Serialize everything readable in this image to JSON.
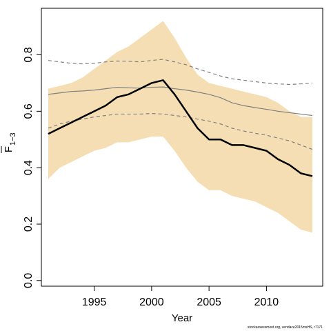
{
  "chart_data": {
    "type": "line",
    "xlabel": "Year",
    "ylabel_main": "F",
    "ylabel_sub": "1−3",
    "xlim": [
      1990.4,
      2014.9
    ],
    "ylim": [
      -0.02,
      0.965
    ],
    "x_ticks": [
      1995,
      2000,
      2005,
      2010
    ],
    "y_ticks": [
      0.0,
      0.2,
      0.4,
      0.6,
      0.8
    ],
    "y_tick_labels": [
      "0.0",
      "0.2",
      "0.4",
      "0.6",
      "0.8"
    ],
    "years": [
      1991,
      1992,
      1993,
      1994,
      1995,
      1996,
      1997,
      1998,
      1999,
      2000,
      2001,
      2002,
      2003,
      2004,
      2005,
      2006,
      2007,
      2008,
      2009,
      2010,
      2011,
      2012,
      2013,
      2014
    ],
    "band": {
      "color": "#f5deb3",
      "lower": [
        0.36,
        0.4,
        0.42,
        0.44,
        0.46,
        0.47,
        0.49,
        0.49,
        0.5,
        0.51,
        0.51,
        0.46,
        0.4,
        0.35,
        0.32,
        0.32,
        0.3,
        0.29,
        0.28,
        0.26,
        0.24,
        0.21,
        0.18,
        0.17
      ],
      "upper": [
        0.68,
        0.69,
        0.7,
        0.72,
        0.75,
        0.78,
        0.81,
        0.83,
        0.86,
        0.89,
        0.92,
        0.86,
        0.79,
        0.73,
        0.7,
        0.69,
        0.68,
        0.67,
        0.66,
        0.65,
        0.63,
        0.6,
        0.58,
        0.58
      ]
    },
    "series": [
      {
        "role": "main",
        "color": "#000000",
        "style": "solid",
        "values": [
          0.52,
          0.54,
          0.56,
          0.58,
          0.6,
          0.62,
          0.65,
          0.66,
          0.68,
          0.7,
          0.71,
          0.66,
          0.6,
          0.54,
          0.5,
          0.5,
          0.48,
          0.48,
          0.47,
          0.46,
          0.43,
          0.41,
          0.38,
          0.37
        ]
      },
      {
        "role": "reference-median",
        "color": "#808080",
        "style": "solid",
        "values": [
          0.66,
          0.665,
          0.67,
          0.672,
          0.675,
          0.68,
          0.685,
          0.683,
          0.682,
          0.685,
          0.686,
          0.68,
          0.675,
          0.668,
          0.66,
          0.648,
          0.63,
          0.62,
          0.613,
          0.607,
          0.6,
          0.595,
          0.59,
          0.585
        ]
      },
      {
        "role": "reference-upper",
        "color": "#808080",
        "style": "dashed",
        "values": [
          0.78,
          0.775,
          0.77,
          0.768,
          0.77,
          0.775,
          0.778,
          0.777,
          0.775,
          0.78,
          0.784,
          0.775,
          0.765,
          0.75,
          0.738,
          0.725,
          0.715,
          0.71,
          0.705,
          0.7,
          0.697,
          0.695,
          0.697,
          0.7
        ]
      },
      {
        "role": "reference-lower",
        "color": "#808080",
        "style": "dashed",
        "values": [
          0.54,
          0.555,
          0.565,
          0.572,
          0.58,
          0.585,
          0.59,
          0.59,
          0.59,
          0.592,
          0.59,
          0.585,
          0.58,
          0.572,
          0.565,
          0.555,
          0.54,
          0.53,
          0.522,
          0.515,
          0.505,
          0.495,
          0.48,
          0.465
        ]
      }
    ]
  },
  "footer": {
    "credit": "stockassessment.org, vendace2015msHS, r7171"
  }
}
